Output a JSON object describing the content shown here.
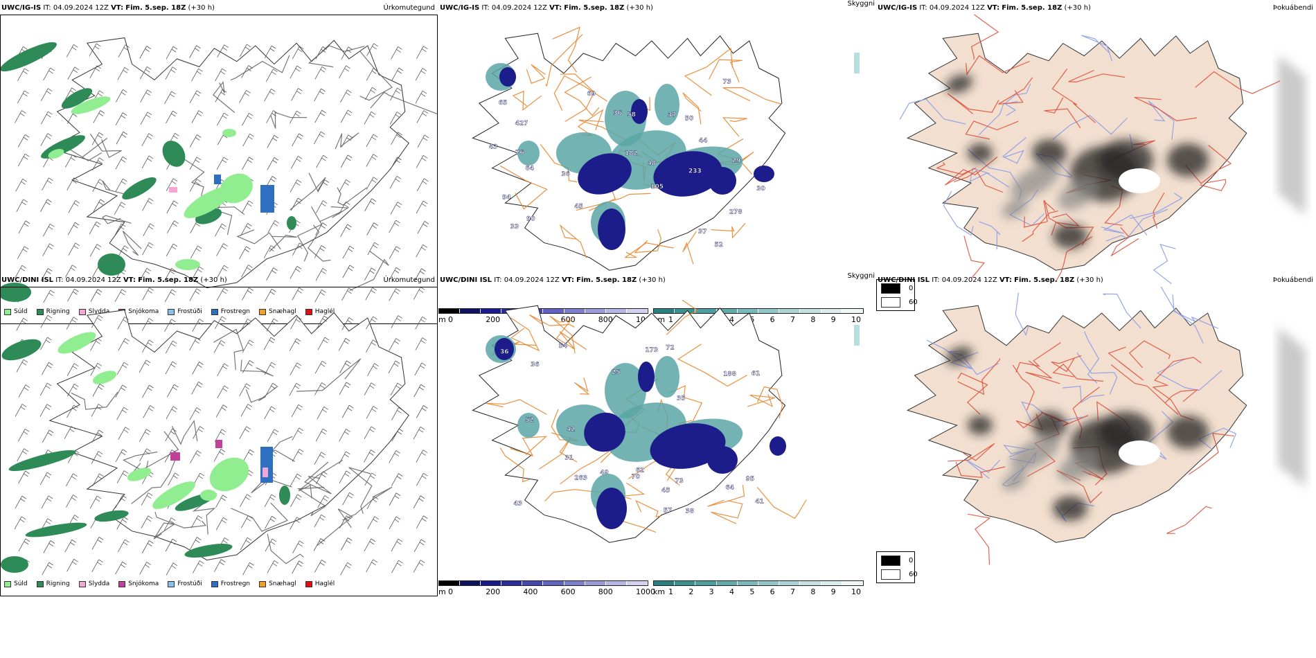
{
  "rows": [
    {
      "model": "UWC/IG-IS",
      "it_label": "IT:",
      "it_value": "04.09.2024 12Z",
      "vt_label": "VT:",
      "vt_value": "Fim. 5.sep. 18Z",
      "lead": "(+30 h)",
      "precip_title": "Úrkomutegund",
      "vis_title": "Skyggni",
      "fog_title": "Þokuábendi",
      "vis_labels": [
        "52",
        "64",
        "105",
        "65",
        "278",
        "427",
        "90",
        "36",
        "50",
        "36",
        "37",
        "37",
        "45",
        "69",
        "48",
        "94",
        "233",
        "182",
        "43",
        "33",
        "73",
        "58",
        "44",
        "30",
        "29",
        "76"
      ]
    },
    {
      "model": "UWC/DINI ISL",
      "it_label": "IT:",
      "it_value": "04.09.2024 12Z",
      "vt_label": "VT:",
      "vt_value": "Fim. 5.sep. 18Z",
      "lead": "(+30 h)",
      "precip_title": "Úrkomutegund",
      "vis_title": "Skyggni",
      "fog_title": "Þokuábendi",
      "vis_labels": [
        "64",
        "95",
        "62",
        "173",
        "73",
        "35",
        "38",
        "41",
        "36",
        "45",
        "52",
        "42",
        "72",
        "70",
        "49",
        "43",
        "25",
        "188",
        "263",
        "54",
        "61",
        "57",
        "31",
        "36"
      ]
    }
  ],
  "precip_legend": [
    {
      "label": "Súld",
      "color": "#90ee90"
    },
    {
      "label": "Rigning",
      "color": "#2e8b57"
    },
    {
      "label": "Slydda",
      "color": "#f4a6d4"
    },
    {
      "label": "Snjókoma",
      "color": "#c0409a"
    },
    {
      "label": "Frostúði",
      "color": "#87bff0"
    },
    {
      "label": "Frostregn",
      "color": "#2f6fc0"
    },
    {
      "label": "Snæhagl",
      "color": "#f0a020"
    },
    {
      "label": "Haglél",
      "color": "#e01010"
    }
  ],
  "ceiling_bar": {
    "unit": "m",
    "ticks": [
      "0",
      "200",
      "400",
      "600",
      "800",
      "1000"
    ],
    "colors": [
      "#000000",
      "#101060",
      "#1a1a8c",
      "#2b2ba0",
      "#4646b0",
      "#6262c0",
      "#7e7ece",
      "#9b9bda",
      "#b6b6e6",
      "#d2d2f0"
    ]
  },
  "vis_bar": {
    "unit": "km",
    "ticks": [
      "1",
      "2",
      "3",
      "4",
      "5",
      "6",
      "7",
      "8",
      "9",
      "10"
    ],
    "colors": [
      "#2a8080",
      "#3b9090",
      "#4d9e9e",
      "#62abab",
      "#7ab9b9",
      "#93c6c6",
      "#acd3d3",
      "#c5e0e0",
      "#dcecec",
      "#f0f7f7"
    ]
  },
  "fog_legend": [
    {
      "label": "0",
      "color": "#000000"
    },
    {
      "label": "60",
      "color": "#ffffff"
    }
  ],
  "colors": {
    "land_fog": "#f2dfcf",
    "road": "#e8842a",
    "road_fog": "#e0503a",
    "river": "#8a9ce8",
    "ceiling": "#1c1c8a",
    "vis_teal": "#5aa6a6"
  }
}
